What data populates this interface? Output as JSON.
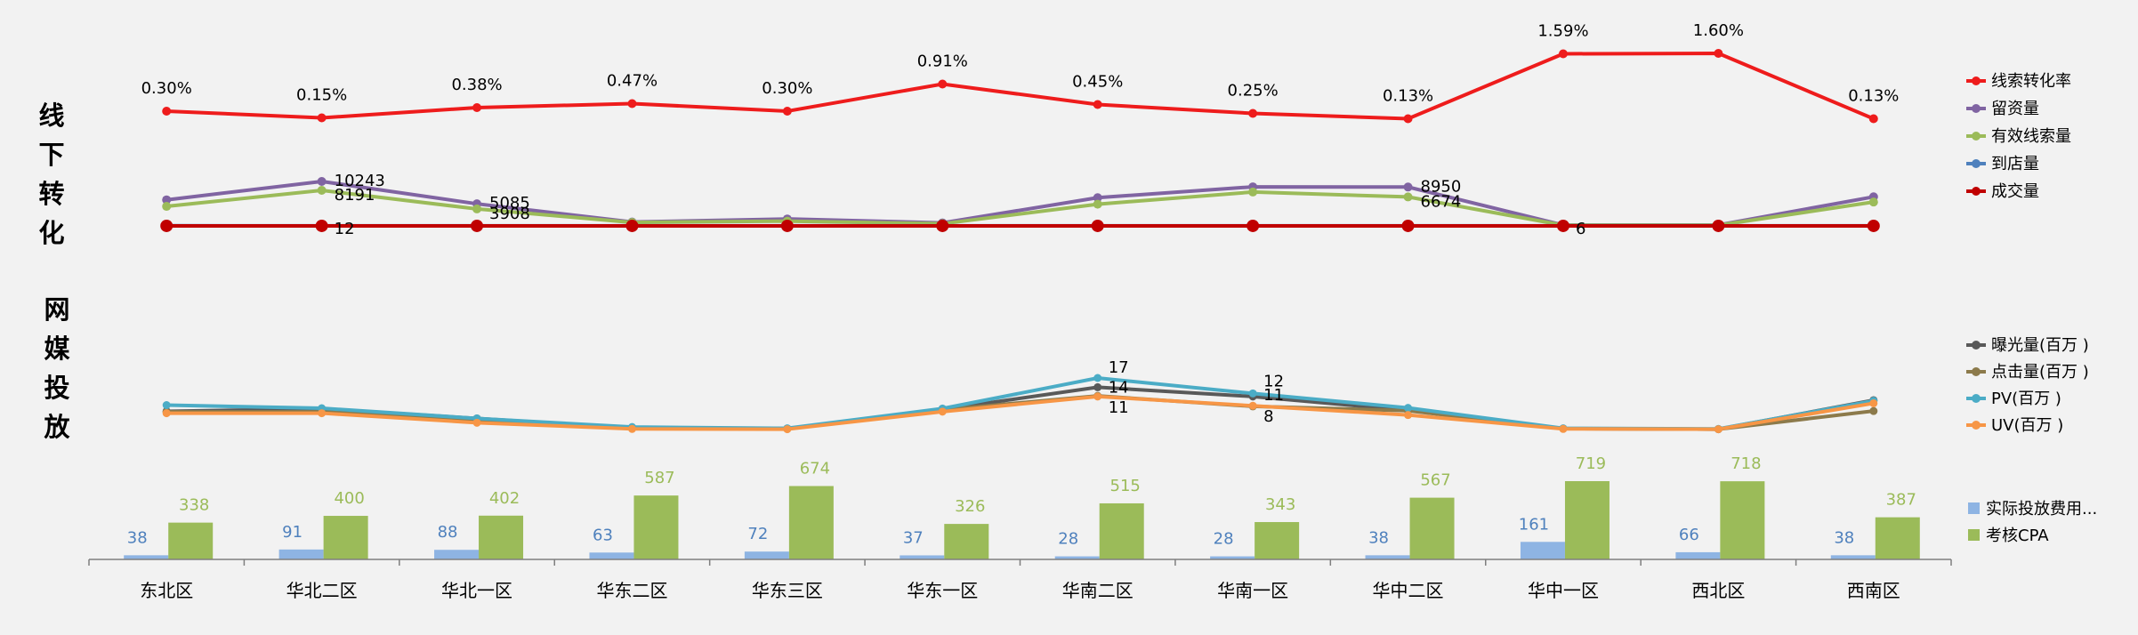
{
  "chart_data": {
    "type": "line+bar",
    "categories": [
      "东北区",
      "华北二区",
      "华北一区",
      "华东二区",
      "华东三区",
      "华东一区",
      "华南二区",
      "华南一区",
      "华中二区",
      "华中一区",
      "西北区",
      "西南区"
    ],
    "section_titles": {
      "offline": "线下转化",
      "media": "网媒投放"
    },
    "offline": {
      "rate_series": {
        "name": "线索转化率",
        "color": "#ee1c1c",
        "values": [
          0.3,
          0.15,
          0.38,
          0.47,
          0.3,
          0.91,
          0.45,
          0.25,
          0.13,
          1.59,
          1.6,
          0.13
        ],
        "labels": [
          "0.30%",
          "0.15%",
          "0.38%",
          "0.47%",
          "0.30%",
          "0.91%",
          "0.45%",
          "0.25%",
          "0.13%",
          "1.59%",
          "1.60%",
          "0.13%"
        ]
      },
      "series": [
        {
          "name": "留资量",
          "color": "#8064a2",
          "values": [
            6000,
            10243,
            5085,
            900,
            1600,
            700,
            6500,
            9000,
            8950,
            200,
            200,
            6700
          ]
        },
        {
          "name": "有效线索量",
          "color": "#9bbb59",
          "values": [
            4500,
            8191,
            3908,
            800,
            1100,
            500,
            5000,
            7800,
            6674,
            150,
            150,
            5500
          ]
        },
        {
          "name": "到店量",
          "color": "#4f81bd",
          "values": [
            40,
            30,
            30,
            20,
            20,
            20,
            30,
            30,
            30,
            30,
            30,
            30
          ]
        },
        {
          "name": "成交量",
          "color": "#c00000",
          "values": [
            12,
            12,
            12,
            6,
            6,
            6,
            10,
            10,
            10,
            6,
            6,
            10
          ]
        }
      ],
      "data_labels": [
        {
          "series": 0,
          "index": 1,
          "text": "10243"
        },
        {
          "series": 0,
          "index": 2,
          "text": "5085"
        },
        {
          "series": 0,
          "index": 8,
          "text": "8950"
        },
        {
          "series": 1,
          "index": 1,
          "text": "8191"
        },
        {
          "series": 1,
          "index": 2,
          "text": "3908"
        },
        {
          "series": 1,
          "index": 8,
          "text": "6674"
        },
        {
          "series": 3,
          "index": 1,
          "text": "12"
        },
        {
          "series": 3,
          "index": 9,
          "text": "6"
        }
      ]
    },
    "media": {
      "series": [
        {
          "name": "曝光量(百万 )",
          "color": "#595959",
          "values": [
            6.2,
            7.0,
            3.9,
            0.8,
            0.6,
            6.8,
            14,
            11,
            6.5,
            0.6,
            0.4,
            9.8
          ]
        },
        {
          "name": "点击量(百万 )",
          "color": "#8c7a4b",
          "values": [
            6.0,
            6.0,
            3.3,
            0.7,
            0.6,
            6.7,
            11.2,
            7.8,
            6.4,
            0.6,
            0.4,
            6.3
          ]
        },
        {
          "name": "PV(百万 )",
          "color": "#4bacc6",
          "values": [
            8.2,
            7.2,
            3.9,
            1.1,
            0.7,
            7.1,
            17,
            12,
            7.3,
            0.7,
            0.5,
            9.6
          ]
        },
        {
          "name": "UV(百万 )",
          "color": "#f79646",
          "values": [
            5.6,
            5.6,
            2.5,
            0.5,
            0.4,
            6.1,
            11,
            8,
            5.0,
            0.5,
            0.4,
            8.8
          ]
        }
      ],
      "data_labels": [
        {
          "series": 2,
          "index": 6,
          "text": "17"
        },
        {
          "series": 0,
          "index": 6,
          "text": "14"
        },
        {
          "series": 3,
          "index": 6,
          "text": "11"
        },
        {
          "series": 2,
          "index": 7,
          "text": "12"
        },
        {
          "series": 0,
          "index": 7,
          "text": "11"
        },
        {
          "series": 3,
          "index": 7,
          "text": "8"
        }
      ]
    },
    "bars": {
      "series": [
        {
          "name": "实际投放费用...",
          "color": "#8eb4e3",
          "label_color": "#4f81bd",
          "values": [
            38,
            91,
            88,
            63,
            72,
            37,
            28,
            28,
            38,
            161,
            66,
            38
          ]
        },
        {
          "name": "考核CPA",
          "color": "#9bbb59",
          "label_color": "#9bbb59",
          "values": [
            338,
            400,
            402,
            587,
            674,
            326,
            515,
            343,
            567,
            719,
            718,
            387
          ]
        }
      ],
      "ylim": [
        0,
        800
      ]
    }
  }
}
